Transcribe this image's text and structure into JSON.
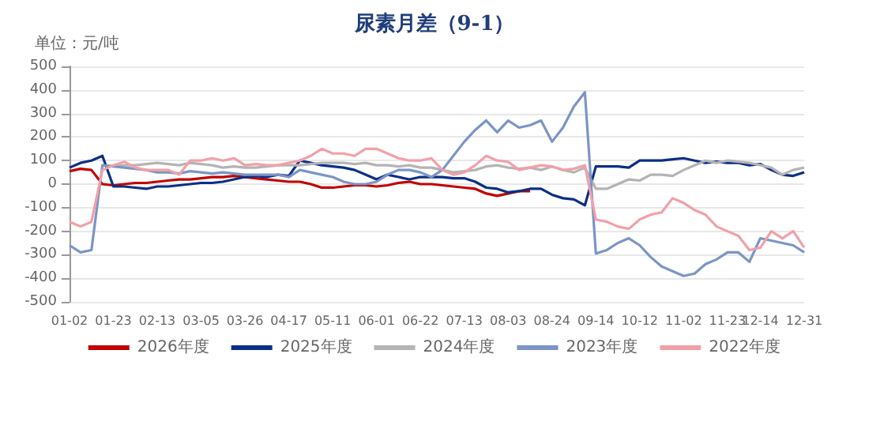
{
  "chart_data": {
    "type": "line",
    "title": "尿素月差（9-1）",
    "annotations": [
      "单位：元/吨"
    ],
    "categories": [
      "01-02",
      null,
      null,
      null,
      "01-23",
      null,
      null,
      null,
      "02-13",
      null,
      null,
      null,
      "03-05",
      null,
      null,
      null,
      "03-26",
      null,
      null,
      null,
      "04-17",
      null,
      null,
      null,
      "05-11",
      null,
      null,
      null,
      "06-01",
      null,
      null,
      null,
      "06-22",
      null,
      null,
      null,
      "07-13",
      null,
      null,
      null,
      "08-03",
      null,
      null,
      null,
      "08-24",
      null,
      null,
      null,
      "09-14",
      null,
      null,
      null,
      "10-12",
      null,
      null,
      null,
      "11-02",
      null,
      null,
      null,
      "11-23",
      null,
      null,
      "12-14",
      null,
      null,
      null,
      "12-31"
    ],
    "series": [
      {
        "name": "2026年度",
        "color": "#c00000",
        "values": [
          55,
          65,
          60,
          0,
          -5,
          0,
          5,
          5,
          10,
          15,
          20,
          20,
          25,
          30,
          30,
          35,
          30,
          25,
          20,
          15,
          10,
          10,
          0,
          -15,
          -15,
          -10,
          -5,
          -5,
          -10,
          -5,
          5,
          10,
          0,
          0,
          -5,
          -10,
          -15,
          -20,
          -40,
          -50,
          -40,
          -30,
          -30,
          null,
          null,
          null,
          null,
          null,
          null,
          null,
          null,
          null,
          null,
          null,
          null,
          null,
          null,
          null,
          null,
          null,
          null,
          null,
          null,
          null,
          null,
          null,
          null,
          null
        ]
      },
      {
        "name": "2025年度",
        "color": "#0b2f86",
        "values": [
          70,
          90,
          100,
          120,
          -10,
          -10,
          -15,
          -20,
          -10,
          -10,
          -5,
          0,
          5,
          5,
          10,
          20,
          30,
          35,
          30,
          40,
          35,
          100,
          90,
          80,
          75,
          70,
          60,
          40,
          20,
          40,
          30,
          20,
          30,
          30,
          30,
          25,
          25,
          10,
          -15,
          -20,
          -35,
          -30,
          -20,
          -20,
          -45,
          -60,
          -65,
          -90,
          75,
          75,
          75,
          70,
          100,
          100,
          100,
          105,
          110,
          100,
          90,
          95,
          90,
          90,
          80,
          85,
          60,
          40,
          35,
          50
        ]
      },
      {
        "name": "2024年度",
        "color": "#b4b4b4",
        "values": [
          null,
          null,
          null,
          80,
          75,
          80,
          80,
          85,
          90,
          85,
          80,
          90,
          85,
          80,
          70,
          75,
          70,
          70,
          75,
          80,
          80,
          80,
          85,
          90,
          90,
          90,
          85,
          90,
          80,
          80,
          75,
          80,
          70,
          70,
          60,
          50,
          55,
          60,
          75,
          80,
          70,
          65,
          70,
          60,
          75,
          60,
          50,
          70,
          -20,
          -20,
          0,
          20,
          15,
          40,
          40,
          35,
          60,
          80,
          100,
          90,
          100,
          95,
          90,
          80,
          70,
          40,
          60,
          70
        ]
      },
      {
        "name": "2023年度",
        "color": "#7b95c6",
        "values": [
          -260,
          -290,
          -280,
          80,
          75,
          70,
          65,
          60,
          50,
          50,
          45,
          55,
          50,
          45,
          50,
          45,
          40,
          40,
          40,
          40,
          30,
          60,
          50,
          40,
          30,
          10,
          0,
          0,
          10,
          40,
          60,
          60,
          50,
          30,
          60,
          120,
          180,
          230,
          270,
          220,
          270,
          240,
          250,
          270,
          180,
          240,
          330,
          390,
          -295,
          -280,
          -250,
          -230,
          -260,
          -310,
          -350,
          -370,
          -390,
          -380,
          -340,
          -320,
          -290,
          -290,
          -330,
          -230,
          -240,
          -250,
          -260,
          -290
        ]
      },
      {
        "name": "2022年度",
        "color": "#f2a0a8",
        "values": [
          -160,
          -180,
          -160,
          60,
          80,
          95,
          70,
          60,
          60,
          60,
          40,
          100,
          100,
          110,
          100,
          110,
          80,
          85,
          80,
          80,
          90,
          100,
          120,
          150,
          130,
          130,
          120,
          150,
          150,
          130,
          110,
          100,
          100,
          110,
          60,
          40,
          50,
          80,
          120,
          100,
          95,
          60,
          70,
          80,
          75,
          60,
          65,
          80,
          -150,
          -160,
          -180,
          -190,
          -150,
          -130,
          -120,
          -60,
          -80,
          -110,
          -130,
          -180,
          -200,
          -220,
          -280,
          -270,
          -200,
          -230,
          -200,
          -270
        ]
      }
    ],
    "ylim": [
      -500,
      500
    ],
    "yticks": [
      -500,
      -400,
      -300,
      -200,
      -100,
      0,
      100,
      200,
      300,
      400,
      500
    ],
    "grid": "y",
    "legend": "bottom",
    "marker": "none",
    "line_style": "solid"
  }
}
